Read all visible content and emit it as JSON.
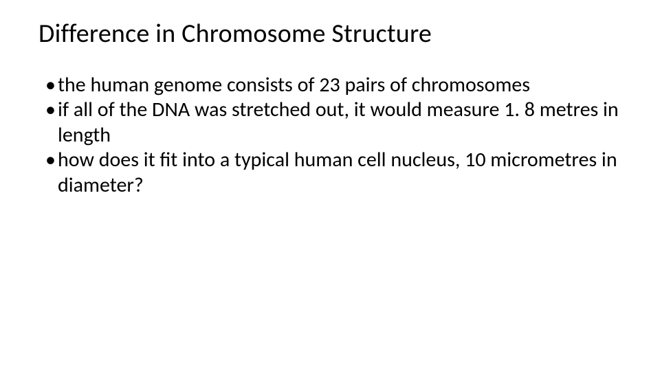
{
  "slide": {
    "title": "Difference in Chromosome Structure",
    "bullets": [
      "the human genome consists of 23 pairs of chromosomes",
      "if all of the DNA was stretched out, it would measure 1. 8 metres in length",
      "how does it fit into a typical human cell nucleus, 10 micrometres in diameter?"
    ],
    "background_color": "#ffffff",
    "text_color": "#000000",
    "title_fontsize": 38,
    "body_fontsize": 30,
    "font_family": "Calibri"
  }
}
